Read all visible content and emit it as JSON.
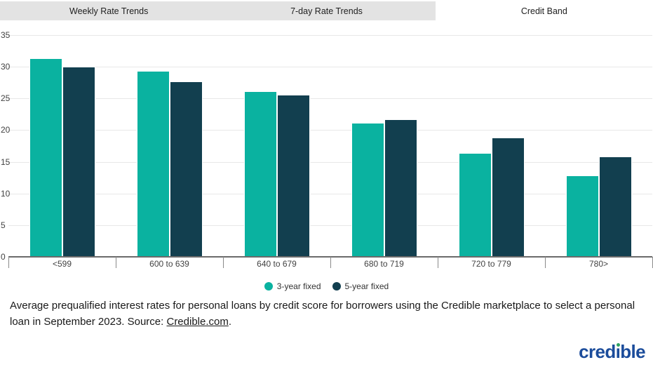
{
  "tabs": {
    "items": [
      {
        "label": "Weekly Rate Trends",
        "active": false
      },
      {
        "label": "7-day Rate Trends",
        "active": false
      },
      {
        "label": "Credit Band",
        "active": true
      }
    ]
  },
  "chart_data": {
    "type": "bar",
    "title": "",
    "categories": [
      "<599",
      "600 to 639",
      "640 to 679",
      "680 to 719",
      "720 to 779",
      "780>"
    ],
    "series": [
      {
        "name": "3-year fixed",
        "color": "#0ab2a0",
        "values": [
          31.3,
          29.3,
          26.1,
          21.1,
          16.4,
          12.8
        ]
      },
      {
        "name": "5-year fixed",
        "color": "#123f4f",
        "values": [
          30.0,
          27.7,
          25.6,
          21.7,
          18.8,
          15.8
        ]
      }
    ],
    "xlabel": "",
    "ylabel": "",
    "ylim": [
      0,
      35
    ],
    "ytick_interval": 5,
    "ytick_labels": [
      "0",
      "5",
      "10",
      "15",
      "20",
      "25",
      "30",
      "35"
    ],
    "grid": true,
    "legend_position": "bottom"
  },
  "caption": {
    "text": "Average prequalified interest rates for personal loans by credit score for borrowers using the Credible marketplace to select a personal loan in September 2023. Source:",
    "link_text": "Credible.com",
    "suffix": "."
  },
  "logo": {
    "full_text": "credible",
    "pre": "cred",
    "i": "ı",
    "post": "ble",
    "brand_blue": "#1b4c9b",
    "dot_green": "#2ea362"
  },
  "colors": {
    "tab_background": "#e3e3e3",
    "active_tab_background": "#ffffff",
    "gridline": "#e8e8e8",
    "axis": "#6b6b6b",
    "axis_text": "#424242"
  }
}
